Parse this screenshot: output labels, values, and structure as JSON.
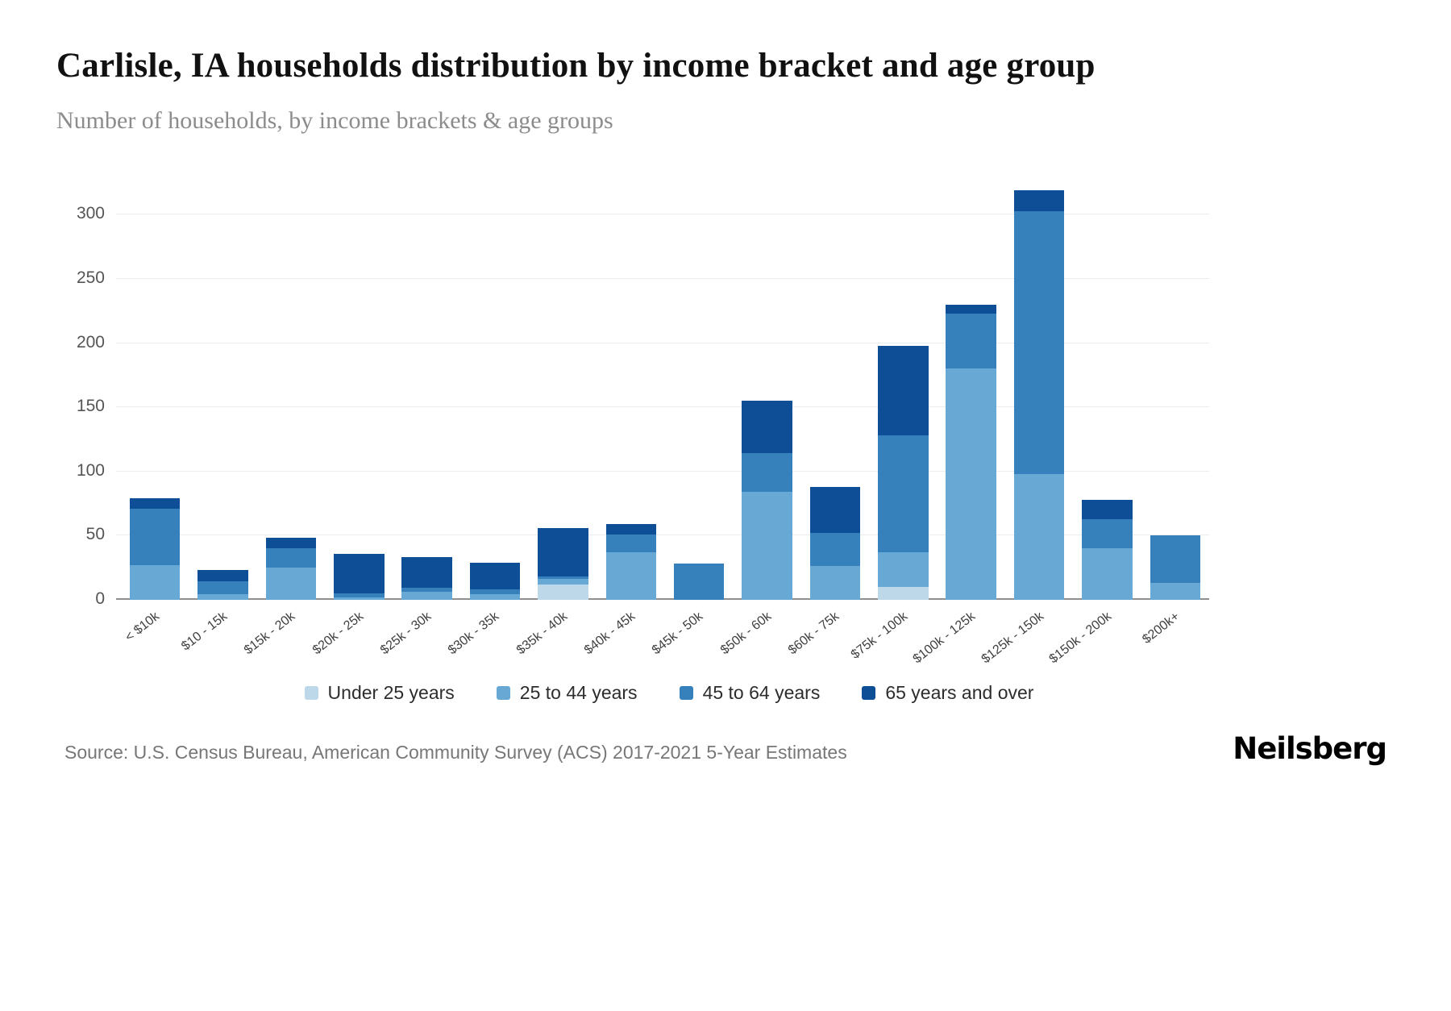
{
  "page": {
    "title": "Carlisle, IA households distribution by income bracket and age group",
    "subtitle": "Number of households, by income brackets & age groups",
    "source": "Source: U.S. Census Bureau, American Community Survey (ACS) 2017-2021 5-Year Estimates",
    "brand": "Neilsberg"
  },
  "chart_data": {
    "type": "bar",
    "stacked": true,
    "title": "Carlisle, IA households distribution by income bracket and age group",
    "subtitle": "Number of households, by income brackets & age groups",
    "categories": [
      "< $10k",
      "$10 - 15k",
      "$15k - 20k",
      "$20k - 25k",
      "$25k - 30k",
      "$30k - 35k",
      "$35k - 40k",
      "$40k - 45k",
      "$45k - 50k",
      "$50k - 60k",
      "$60k - 75k",
      "$75k - 100k",
      "$100k - 125k",
      "$125k - 150k",
      "$150k - 200k",
      "$200k+"
    ],
    "series": [
      {
        "name": "Under 25 years",
        "color": "#bdd8e9",
        "values": [
          0,
          0,
          0,
          0,
          0,
          0,
          12,
          0,
          0,
          0,
          0,
          10,
          0,
          0,
          0,
          0
        ]
      },
      {
        "name": "25 to 44 years",
        "color": "#67a8d4",
        "values": [
          27,
          4,
          25,
          2,
          6,
          4,
          4,
          37,
          0,
          84,
          26,
          27,
          180,
          98,
          40,
          13
        ]
      },
      {
        "name": "45 to 64 years",
        "color": "#3680bc",
        "values": [
          44,
          10,
          15,
          3,
          3,
          4,
          2,
          14,
          28,
          30,
          26,
          91,
          43,
          205,
          23,
          37
        ]
      },
      {
        "name": "65 years and over",
        "color": "#0d4e96",
        "values": [
          8,
          9,
          8,
          31,
          24,
          21,
          38,
          8,
          0,
          41,
          36,
          70,
          7,
          16,
          15,
          0
        ]
      }
    ],
    "totals": [
      79,
      23,
      48,
      36,
      33,
      29,
      56,
      59,
      28,
      155,
      88,
      198,
      230,
      319,
      78,
      50
    ],
    "xlabel": "",
    "ylabel": "",
    "y_ticks": [
      0,
      50,
      100,
      150,
      200,
      250,
      300
    ],
    "ylim": [
      0,
      330
    ],
    "grid": true,
    "legend_position": "bottom"
  }
}
